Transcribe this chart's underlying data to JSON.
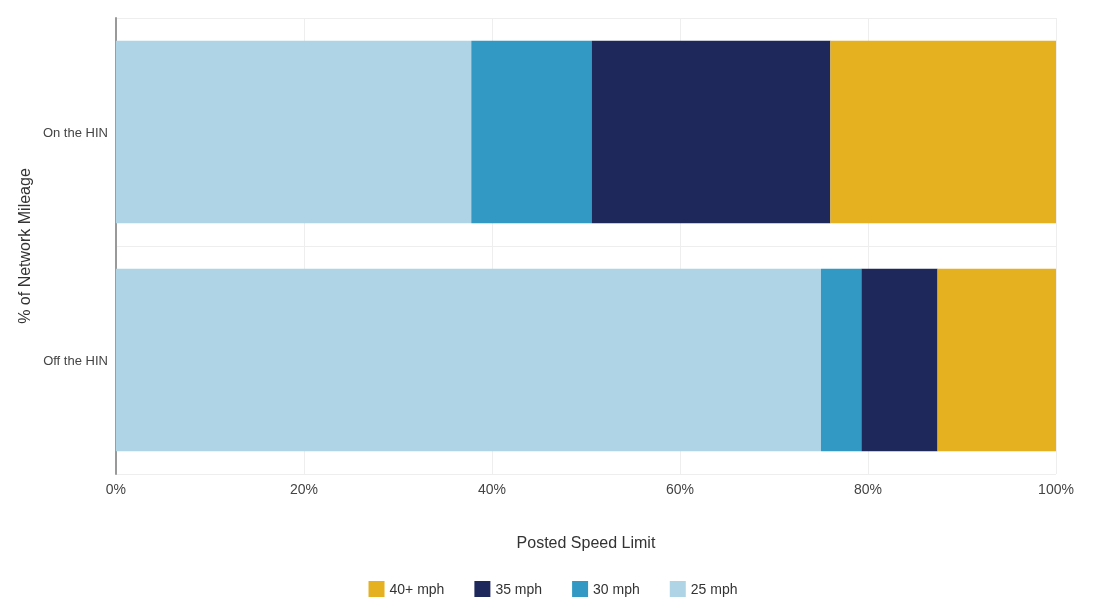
{
  "chart_data": {
    "type": "bar",
    "orientation": "horizontal",
    "stacked": true,
    "xlabel": "Posted Speed Limit",
    "ylabel": "% of Network Mileage",
    "categories": [
      "On the HIN",
      "Off the HIN"
    ],
    "series": [
      {
        "name": "25 mph",
        "color": "#aed4e6",
        "values": [
          37.8,
          75.0
        ]
      },
      {
        "name": "30 mph",
        "color": "#3199c3",
        "values": [
          12.8,
          4.3
        ]
      },
      {
        "name": "35 mph",
        "color": "#1f285b",
        "values": [
          25.4,
          8.1
        ]
      },
      {
        "name": "40+ mph",
        "color": "#e5b120",
        "values": [
          24.0,
          12.6
        ]
      }
    ],
    "xlim": [
      0,
      100
    ],
    "xticks": [
      {
        "value": 0,
        "label": "0%"
      },
      {
        "value": 20,
        "label": "20%"
      },
      {
        "value": 40,
        "label": "40%"
      },
      {
        "value": 60,
        "label": "60%"
      },
      {
        "value": 80,
        "label": "80%"
      },
      {
        "value": 100,
        "label": "100%"
      }
    ],
    "grid": true,
    "legend": "bottom"
  }
}
